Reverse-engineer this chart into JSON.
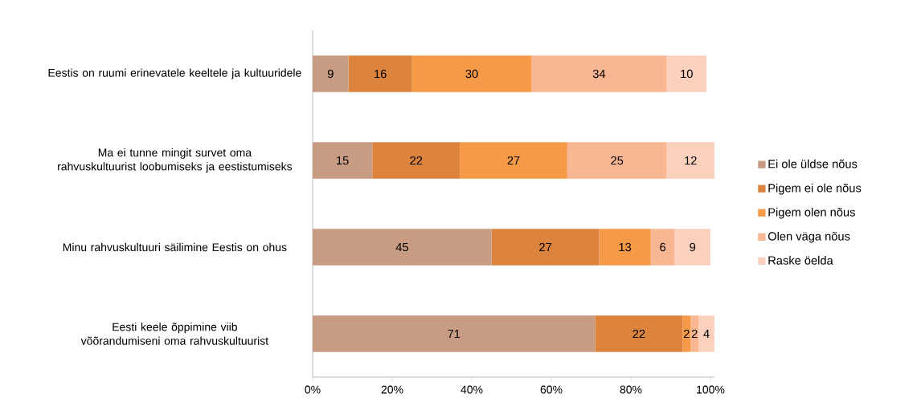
{
  "chart_data": {
    "type": "bar",
    "orientation": "horizontal",
    "stacked": true,
    "categories": [
      "Eestis on ruumi erinevatele keeltele ja kultuuridele",
      "Ma ei tunne mingit survet oma rahvuskultuurist loobumiseks ja eestistumiseks",
      "Minu rahvuskultuuri säilimine Eestis on ohus",
      "Eesti keele õppimine viib võõrandumiseni oma rahvuskultuurist"
    ],
    "series": [
      {
        "name": "Ei ole üldse nõus",
        "color": "#c89c82",
        "values": [
          9,
          15,
          45,
          71
        ]
      },
      {
        "name": "Pigem ei ole nõus",
        "color": "#dc843e",
        "values": [
          16,
          22,
          27,
          22
        ]
      },
      {
        "name": "Pigem olen nõus",
        "color": "#f79a48",
        "values": [
          30,
          27,
          13,
          2
        ]
      },
      {
        "name": "Olen väga nõus",
        "color": "#f8b692",
        "values": [
          34,
          25,
          6,
          2
        ]
      },
      {
        "name": "Raske öelda",
        "color": "#fbd1bd",
        "values": [
          10,
          12,
          9,
          4
        ]
      }
    ],
    "xlim": [
      0,
      101
    ],
    "xticks": [
      {
        "value": 0,
        "label": "0%"
      },
      {
        "value": 20,
        "label": "20%"
      },
      {
        "value": 40,
        "label": "40%"
      },
      {
        "value": 60,
        "label": "60%"
      },
      {
        "value": 80,
        "label": "80%"
      },
      {
        "value": 100,
        "label": "100%"
      }
    ],
    "data_labels": true,
    "legend": "right",
    "grid": false
  }
}
